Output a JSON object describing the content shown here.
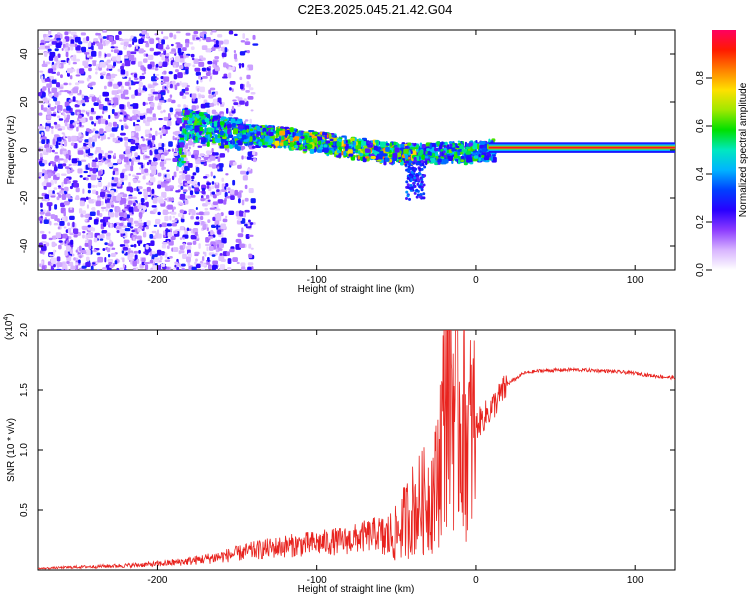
{
  "title": "C2E3.2025.045.21.42.G04",
  "chart_data": [
    {
      "type": "heatmap",
      "xlabel": "Height of straight line (km)",
      "ylabel": "Frequency (Hz)",
      "xlim": [
        -275,
        125
      ],
      "ylim": [
        -50,
        50
      ],
      "xticks": [
        -200,
        -100,
        0,
        100
      ],
      "yticks": [
        -40,
        -20,
        0,
        20,
        40
      ],
      "colorbar": {
        "label": "Normalized spectral amplitude",
        "range": [
          0,
          1
        ],
        "ticks": [
          "0.0",
          "0.2",
          "0.4",
          "0.6",
          "0.8"
        ],
        "colors": [
          "#ffffff",
          "#d8b4ff",
          "#8c3cff",
          "#2800ff",
          "#0040ff",
          "#00b4ff",
          "#00e8c0",
          "#00e000",
          "#a0e800",
          "#ffe000",
          "#ff8000",
          "#ff1a00",
          "#ff0060"
        ]
      },
      "main_band": {
        "x": [
          -185,
          -160,
          -140,
          -120,
          -100,
          -80,
          -60,
          -40,
          -20,
          -5,
          10,
          125
        ],
        "freq": [
          12,
          8,
          7,
          6,
          4,
          2,
          0,
          -1,
          0,
          0,
          1,
          1
        ]
      }
    },
    {
      "type": "line",
      "xlabel": "Height of straight line (km)",
      "ylabel": "SNR (10 * v/v)",
      "multiplier": "(x10",
      "multiplier_exp": "4",
      "xlim": [
        -275,
        125
      ],
      "ylim": [
        0,
        2.0
      ],
      "xticks": [
        -200,
        -100,
        0,
        100
      ],
      "yticks": [
        "0.5",
        "1.0",
        "1.5",
        "2.0"
      ],
      "color": "#e8231e",
      "series": [
        {
          "x": [
            -275,
            -250,
            -220,
            -200,
            -180,
            -160,
            -140,
            -120,
            -100,
            -80,
            -60,
            -50,
            -40,
            -30,
            -25,
            -20,
            -18,
            -15,
            -10,
            -5,
            0,
            10,
            20,
            30,
            40,
            60,
            80,
            100,
            110,
            125
          ],
          "values": [
            0.01,
            0.02,
            0.03,
            0.04,
            0.06,
            0.09,
            0.13,
            0.16,
            0.18,
            0.2,
            0.25,
            0.3,
            0.5,
            0.6,
            0.7,
            1.3,
            1.8,
            1.5,
            1.3,
            1.1,
            1.2,
            1.35,
            1.55,
            1.64,
            1.66,
            1.67,
            1.66,
            1.64,
            1.62,
            1.6
          ]
        }
      ]
    }
  ]
}
